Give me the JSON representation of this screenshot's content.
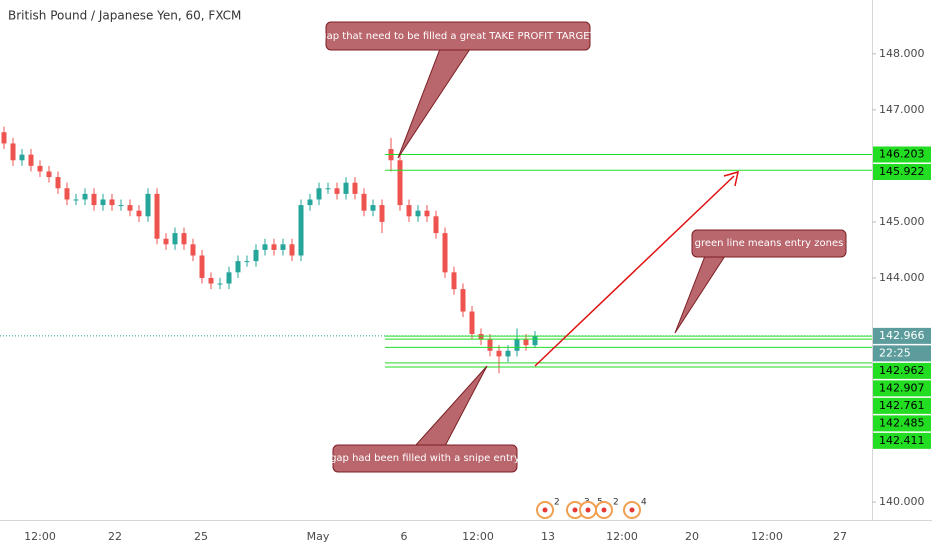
{
  "chart_data": {
    "type": "candlestick",
    "title": "British Pound / Japanese Yen, 60, FXCM",
    "open": [
      146.6,
      146.4,
      146.1,
      146.2,
      146.0,
      145.9,
      145.8,
      145.6,
      145.4,
      145.4,
      145.5,
      145.3,
      145.4,
      145.3,
      145.3,
      145.2,
      145.1,
      145.5,
      144.7,
      144.6,
      144.8,
      144.6,
      144.4,
      144.0,
      143.9,
      143.9,
      144.1,
      144.3,
      144.3,
      144.5,
      144.6,
      144.5,
      144.6,
      144.4,
      145.3,
      145.4,
      145.6,
      145.6,
      145.5,
      145.7,
      145.5,
      145.2,
      145.3,
      146.3,
      146.1,
      145.3,
      145.1,
      145.2,
      145.1,
      144.8,
      144.1,
      143.8,
      143.4,
      143.0,
      142.9,
      142.7,
      142.6,
      142.7,
      142.9,
      142.8
    ],
    "high": [
      146.7,
      146.5,
      146.3,
      146.3,
      146.1,
      146.0,
      145.9,
      145.7,
      145.5,
      145.6,
      145.6,
      145.5,
      145.5,
      145.4,
      145.4,
      145.3,
      145.6,
      145.6,
      144.8,
      144.9,
      144.9,
      144.7,
      144.5,
      144.1,
      144.0,
      144.2,
      144.4,
      144.4,
      144.6,
      144.7,
      144.7,
      144.7,
      144.7,
      145.4,
      145.5,
      145.7,
      145.7,
      145.7,
      145.8,
      145.8,
      145.6,
      145.4,
      145.4,
      146.5,
      146.2,
      145.4,
      145.3,
      145.3,
      145.2,
      144.9,
      144.2,
      143.9,
      143.5,
      143.1,
      143.0,
      142.8,
      142.8,
      143.1,
      143.0,
      143.05
    ],
    "low": [
      146.3,
      146.0,
      146.0,
      145.9,
      145.8,
      145.7,
      145.5,
      145.3,
      145.3,
      145.3,
      145.2,
      145.2,
      145.2,
      145.2,
      145.1,
      145.0,
      145.0,
      144.6,
      144.5,
      144.5,
      144.5,
      144.3,
      143.9,
      143.8,
      143.8,
      143.8,
      144.0,
      144.2,
      144.2,
      144.4,
      144.4,
      144.4,
      144.3,
      144.3,
      145.2,
      145.3,
      145.5,
      145.4,
      145.4,
      145.4,
      145.1,
      145.1,
      144.8,
      145.9,
      145.2,
      145.0,
      145.0,
      145.0,
      144.7,
      144.0,
      143.7,
      143.3,
      142.9,
      142.8,
      142.6,
      142.3,
      142.5,
      142.6,
      142.7,
      142.75
    ],
    "close": [
      146.4,
      146.1,
      146.2,
      146.0,
      145.9,
      145.8,
      145.6,
      145.4,
      145.4,
      145.5,
      145.3,
      145.4,
      145.3,
      145.3,
      145.2,
      145.1,
      145.5,
      144.7,
      144.6,
      144.8,
      144.6,
      144.4,
      144.0,
      143.9,
      143.9,
      144.1,
      144.3,
      144.3,
      144.5,
      144.6,
      144.5,
      144.6,
      144.4,
      145.3,
      145.4,
      145.6,
      145.6,
      145.5,
      145.7,
      145.5,
      145.2,
      145.3,
      145.0,
      146.1,
      145.3,
      145.1,
      145.2,
      145.1,
      144.8,
      144.1,
      143.8,
      143.4,
      143.0,
      142.9,
      142.7,
      142.6,
      142.7,
      142.9,
      142.8,
      142.96
    ],
    "up_color": "#26a69a",
    "down_color": "#ef5350",
    "ylim": [
      139.68,
      148.96
    ],
    "yticks": [
      {
        "value": 140,
        "label": "140.000"
      },
      {
        "value": 144,
        "label": "144.000"
      },
      {
        "value": 145,
        "label": "145.000"
      },
      {
        "value": 147,
        "label": "147.000"
      },
      {
        "value": 148,
        "label": "148.000"
      }
    ],
    "x_labels": [
      "12:00",
      "22",
      "25",
      "May",
      "6",
      "12:00",
      "13",
      "12:00",
      "20",
      "12:00",
      "27"
    ],
    "levels": [
      146.203,
      145.922,
      142.962,
      142.907,
      142.761,
      142.485,
      142.411
    ],
    "level_color": "#22dd22",
    "last_price": 142.966,
    "countdown": "22:25",
    "annotations": [
      "gap that need to be filled a great TAKE PROFIT TARGET",
      "green line means entry zones",
      "gap had been filled with a snipe entry"
    ],
    "events": [
      2,
      3,
      5,
      2,
      4
    ]
  }
}
